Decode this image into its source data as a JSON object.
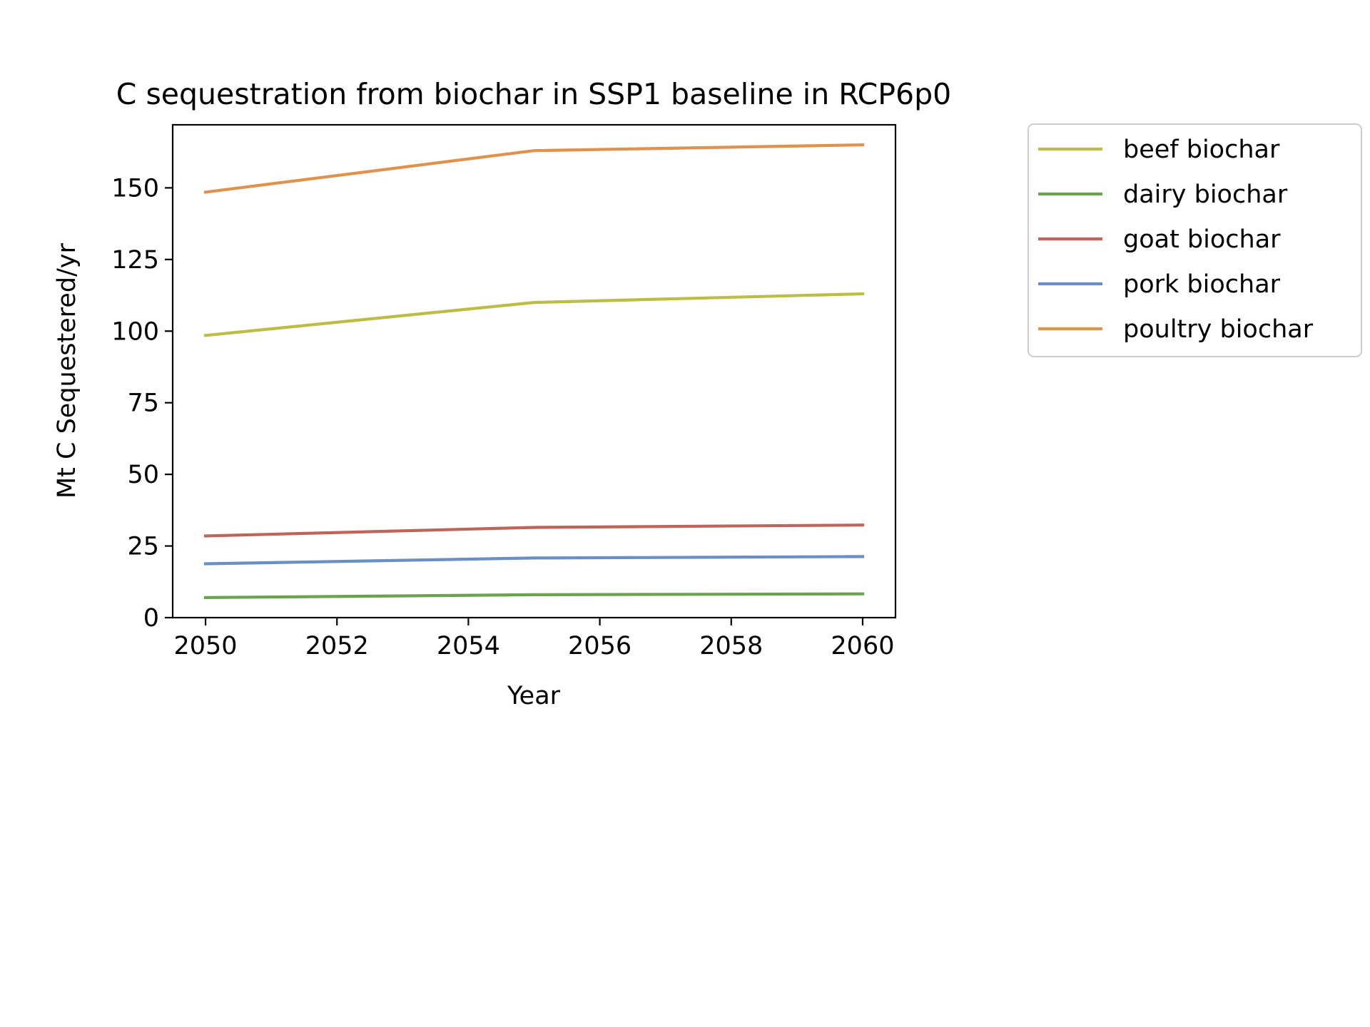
{
  "chart_data": {
    "type": "line",
    "title": "C sequestration from biochar in SSP1 baseline in RCP6p0",
    "xlabel": "Year",
    "ylabel": "Mt C Sequestered/yr",
    "x": [
      2050,
      2055,
      2060
    ],
    "xlim": [
      2049.5,
      2060.5
    ],
    "ylim": [
      0,
      172
    ],
    "xticks": [
      2050,
      2052,
      2054,
      2056,
      2058,
      2060
    ],
    "yticks": [
      0,
      25,
      50,
      75,
      100,
      125,
      150
    ],
    "grid": false,
    "legend_position": "outside upper right",
    "series": [
      {
        "name": "beef biochar",
        "color": "#bcbd44",
        "values": [
          98.5,
          110,
          113
        ]
      },
      {
        "name": "dairy biochar",
        "color": "#6aa350",
        "values": [
          7,
          8,
          8.3
        ]
      },
      {
        "name": "goat biochar",
        "color": "#c0645a",
        "values": [
          28.5,
          31.5,
          32.3
        ]
      },
      {
        "name": "pork biochar",
        "color": "#6a8fc4",
        "values": [
          18.8,
          20.8,
          21.3
        ]
      },
      {
        "name": "poultry biochar",
        "color": "#e0914c",
        "values": [
          148.5,
          163,
          165
        ]
      }
    ]
  }
}
